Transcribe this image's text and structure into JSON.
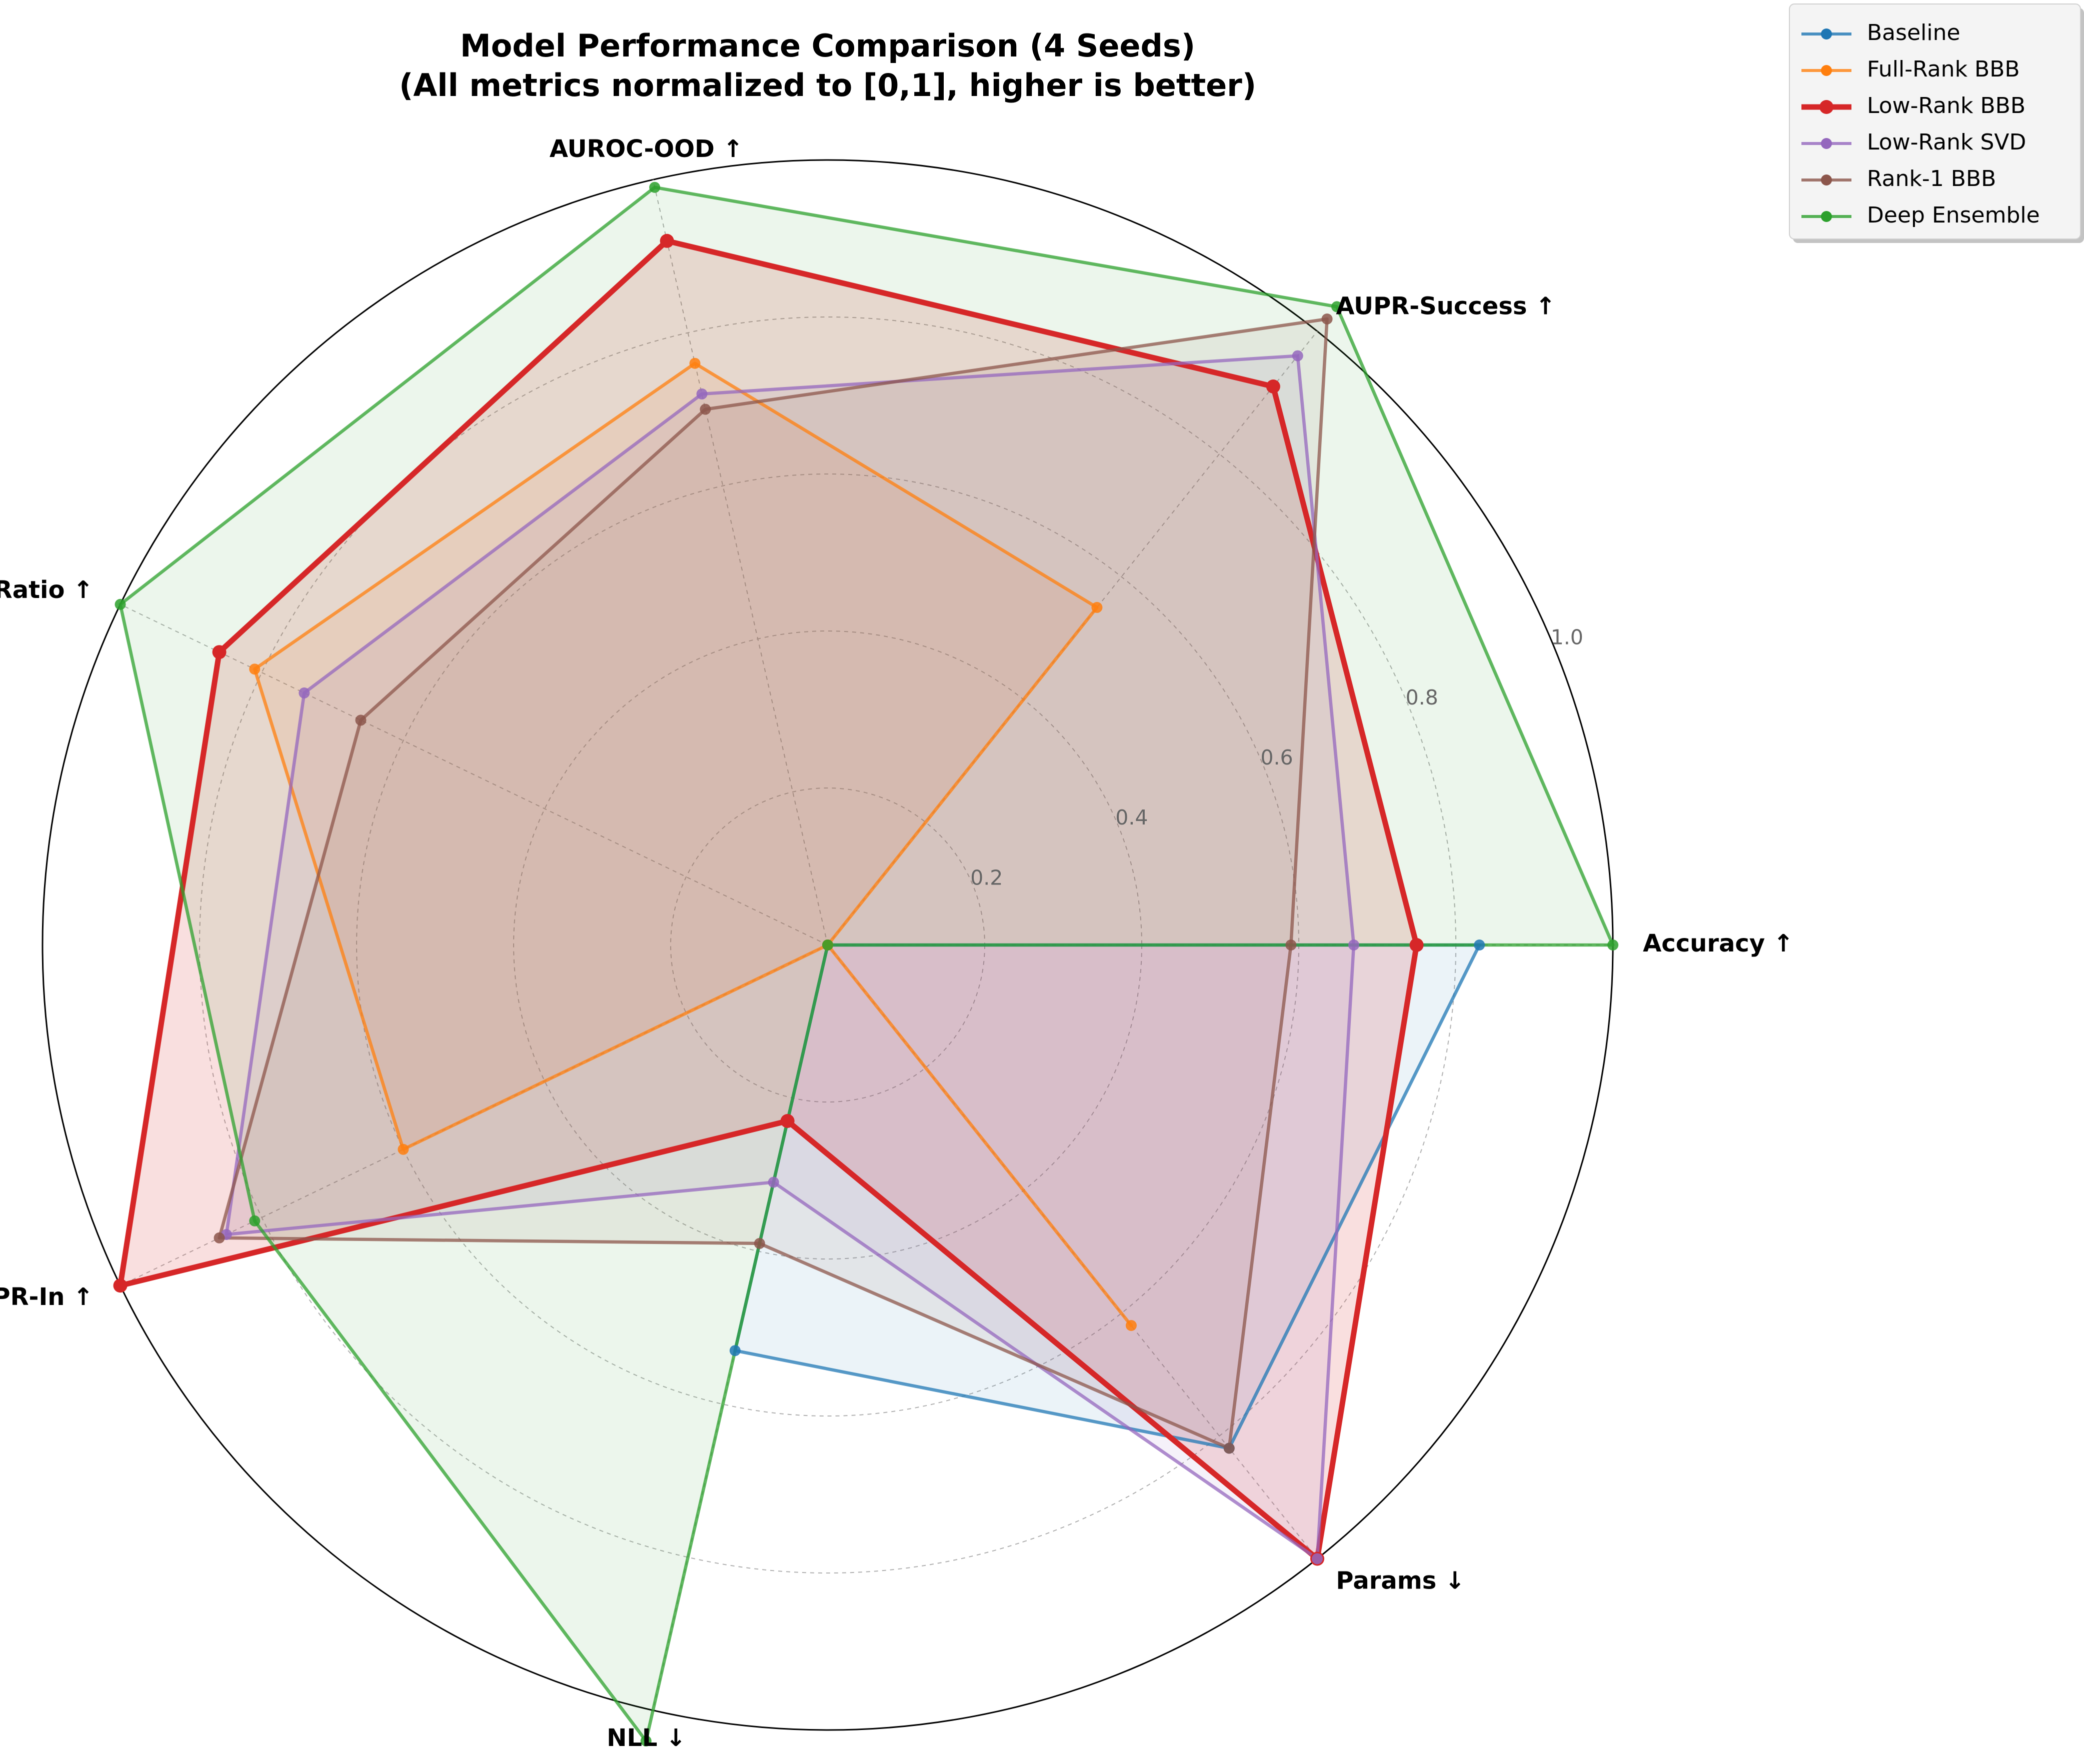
{
  "chart_data": {
    "type": "radar",
    "title": "Model Performance Comparison (4 Seeds)",
    "subtitle": "(All metrics normalized to [0,1], higher is better)",
    "axes": [
      "Accuracy ↑",
      "AUPR-Success ↑",
      "AUROC-OOD ↑",
      "MI Ratio ↑",
      "AUPR-In ↑",
      "NLL ↓",
      "Params ↓"
    ],
    "rlim": [
      0,
      1
    ],
    "rticks": [
      0.2,
      0.4,
      0.6,
      0.8,
      1.0
    ],
    "rtick_labels": [
      "0.2",
      "0.4",
      "0.6",
      "0.8",
      "1.0"
    ],
    "grid": true,
    "legend_position": "upper-right",
    "series": [
      {
        "name": "Baseline",
        "color": "#1f77b4",
        "values": [
          0.83,
          0.0,
          0.0,
          0.0,
          0.0,
          0.53,
          0.82
        ]
      },
      {
        "name": "Full-Rank BBB",
        "color": "#ff7f0e",
        "values": [
          0.0,
          0.55,
          0.76,
          0.81,
          0.6,
          0.0,
          0.62
        ]
      },
      {
        "name": "Low-Rank BBB",
        "color": "#d62728",
        "values": [
          0.75,
          0.91,
          0.92,
          0.86,
          1.0,
          0.23,
          1.0
        ]
      },
      {
        "name": "Low-Rank SVD",
        "color": "#9467bd",
        "values": [
          0.67,
          0.96,
          0.72,
          0.74,
          0.85,
          0.31,
          1.0
        ]
      },
      {
        "name": "Rank-1 BBB",
        "color": "#8c564b",
        "values": [
          0.59,
          1.02,
          0.7,
          0.66,
          0.86,
          0.39,
          0.82
        ]
      },
      {
        "name": "Deep Ensemble",
        "color": "#2ca02c",
        "values": [
          1.0,
          1.04,
          0.99,
          1.0,
          0.81,
          1.04,
          0.0
        ]
      }
    ]
  }
}
